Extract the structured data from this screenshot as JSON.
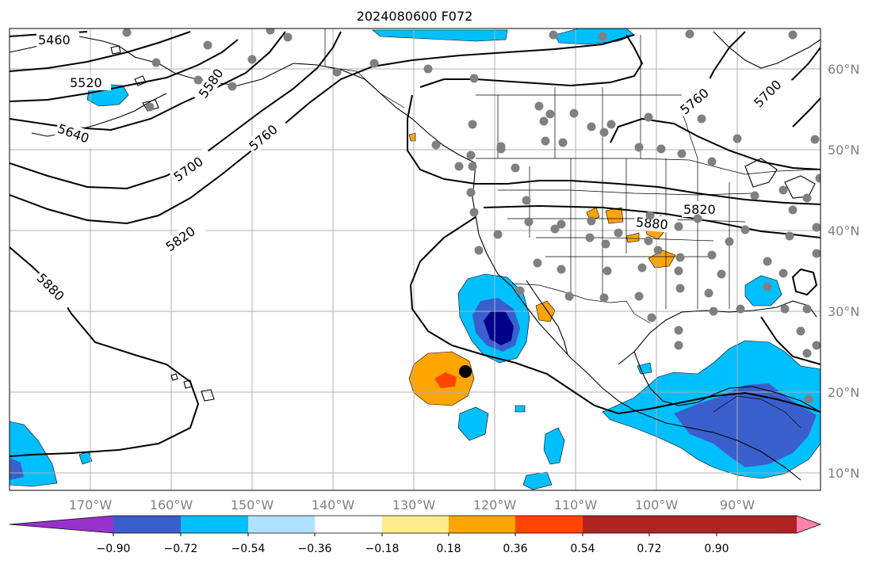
{
  "map": {
    "title": "2024080600 F072",
    "lon_labels": [
      "170°W",
      "160°W",
      "150°W",
      "140°W",
      "130°W",
      "120°W",
      "110°W",
      "100°W",
      "90°W"
    ],
    "lat_labels": [
      "60°N",
      "50°N",
      "40°N",
      "30°N",
      "20°N",
      "10°N"
    ],
    "contour_labels": [
      "5460",
      "5520",
      "5580",
      "5640",
      "5700",
      "5760",
      "5820",
      "5880",
      "5760",
      "5700",
      "5880",
      "5820"
    ],
    "colorbar": {
      "ticks": [
        "−0.90",
        "−0.72",
        "−0.54",
        "−0.36",
        "−0.18",
        "0.18",
        "0.36",
        "0.54",
        "0.72",
        "0.90"
      ],
      "colors": [
        "#9932cc",
        "#00008b",
        "#3a5fcd",
        "#00bfff",
        "#b0e2ff",
        "#ffffff",
        "#ffec8b",
        "#ffa500",
        "#ff4500",
        "#b22222",
        "#ff82ab"
      ]
    },
    "marker_color": "#000000",
    "station_color": "#808080"
  }
}
